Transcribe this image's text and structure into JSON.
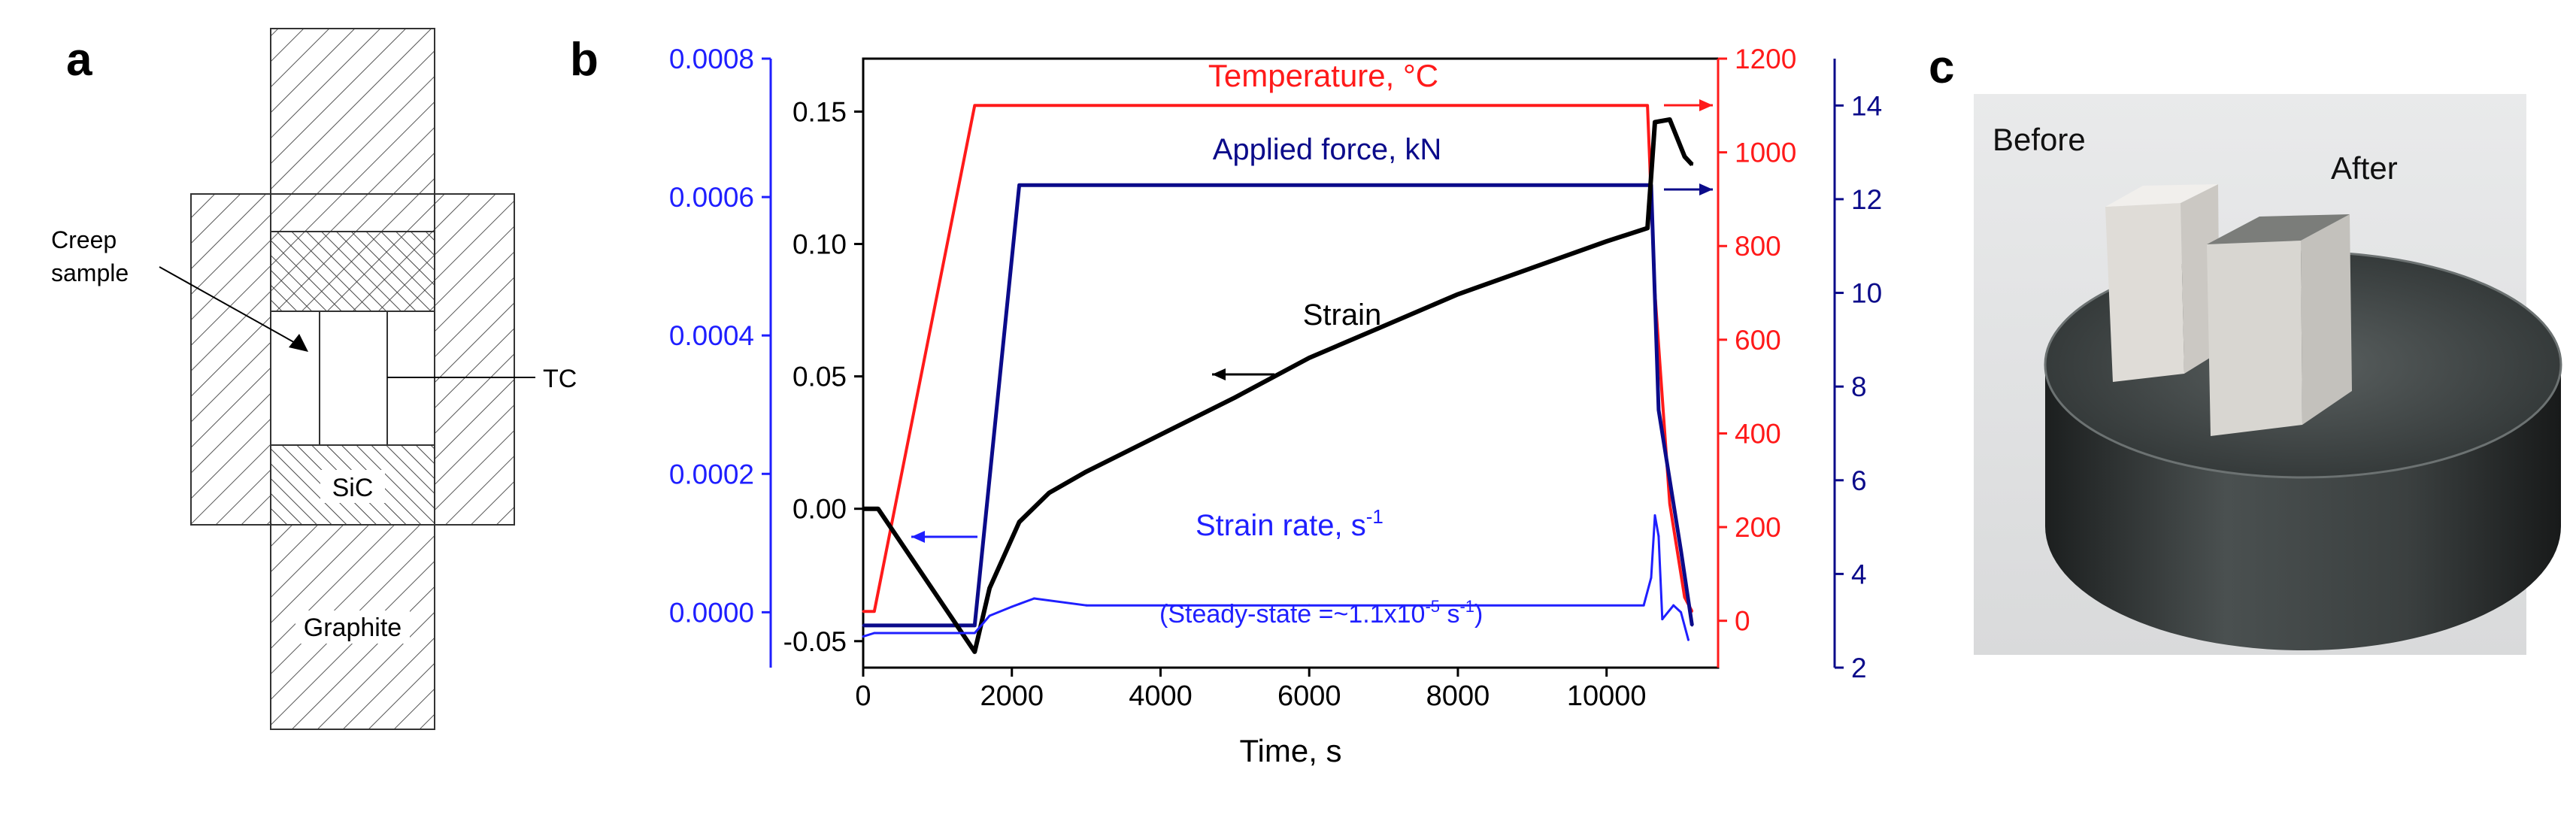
{
  "panel_labels": {
    "a": "a",
    "b": "b",
    "c": "c"
  },
  "schematic": {
    "creep_sample_label_1": "Creep",
    "creep_sample_label_2": "sample",
    "tc_label": "TC",
    "sic_label": "SiC",
    "graphite_label": "Graphite"
  },
  "photo": {
    "before_label": "Before",
    "after_label": "After"
  },
  "colors": {
    "strain": "#000000",
    "strain_rate": "#1f1fff",
    "temperature": "#ff1a1a",
    "force": "#0b0b8a"
  },
  "chart_data": {
    "type": "line",
    "xlabel": "Time, s",
    "xlim": [
      0,
      11500
    ],
    "xticks": [
      0,
      2000,
      4000,
      6000,
      8000,
      10000
    ],
    "xtick_labels": [
      "0",
      "2000",
      "4000",
      "6000",
      "8000",
      "10000"
    ],
    "axes": {
      "strain_rate": {
        "ylim": [
          -8e-05,
          0.0008
        ],
        "ticks": [
          0.0,
          0.0002,
          0.0004,
          0.0006,
          0.0008
        ],
        "tick_labels": [
          "0.0000",
          "0.0002",
          "0.0004",
          "0.0006",
          "0.0008"
        ],
        "side": "far-left"
      },
      "strain": {
        "ylim": [
          -0.06,
          0.17
        ],
        "ticks": [
          -0.05,
          0.0,
          0.05,
          0.1,
          0.15
        ],
        "tick_labels": [
          "-0.05",
          "0.00",
          "0.05",
          "0.10",
          "0.15"
        ],
        "side": "left"
      },
      "temperature": {
        "ylim": [
          -100,
          1200
        ],
        "ticks": [
          0,
          200,
          400,
          600,
          800,
          1000,
          1200
        ],
        "tick_labels": [
          "0",
          "200",
          "400",
          "600",
          "800",
          "1000",
          "1200"
        ],
        "side": "right"
      },
      "force": {
        "ylim": [
          2,
          15
        ],
        "ticks": [
          2,
          4,
          6,
          8,
          10,
          12,
          14
        ],
        "tick_labels": [
          "2",
          "4",
          "6",
          "8",
          "10",
          "12",
          "14"
        ],
        "side": "far-right"
      }
    },
    "series": [
      {
        "name": "Temperature, °C",
        "axis": "temperature",
        "x": [
          0,
          150,
          1500,
          10550,
          10650,
          10850,
          11050,
          11150
        ],
        "y": [
          20,
          20,
          1100,
          1100,
          700,
          250,
          50,
          20
        ]
      },
      {
        "name": "Applied force, kN",
        "axis": "force",
        "x": [
          0,
          1500,
          2100,
          10600,
          10700,
          11000,
          11150
        ],
        "y": [
          2.9,
          2.9,
          12.3,
          12.3,
          7.5,
          4.5,
          2.9
        ]
      },
      {
        "name": "Strain",
        "axis": "strain",
        "x": [
          0,
          200,
          1500,
          1700,
          2100,
          2500,
          3000,
          4000,
          5000,
          6000,
          7000,
          8000,
          9000,
          10000,
          10550,
          10650,
          10850,
          11050,
          11150
        ],
        "y": [
          0.0,
          0.0,
          -0.054,
          -0.03,
          -0.005,
          0.006,
          0.014,
          0.028,
          0.042,
          0.057,
          0.069,
          0.081,
          0.091,
          0.101,
          0.106,
          0.146,
          0.147,
          0.133,
          0.13
        ]
      },
      {
        "name": "Strain rate, s-1",
        "axis": "strain_rate",
        "x": [
          0,
          150,
          1500,
          1700,
          2000,
          2100,
          2300,
          3000,
          6000,
          10500,
          10600,
          10650,
          10700,
          10750,
          10900,
          11000,
          11100
        ],
        "y": [
          -3.5e-05,
          -3e-05,
          -3e-05,
          -5e-06,
          8e-06,
          1.2e-05,
          2e-05,
          1e-05,
          1e-05,
          1e-05,
          5e-05,
          0.00014,
          0.00011,
          -1e-05,
          1e-05,
          0.0,
          -4e-05
        ]
      }
    ],
    "annotations": {
      "temperature_label": "Temperature, °C",
      "force_label": "Applied force, kN",
      "strain_label": "Strain",
      "strain_rate_label": "Strain rate, s",
      "strain_rate_sup": "-1",
      "steady_state_prefix": "(Steady-state =~1.1x10",
      "steady_state_sup": "-5",
      "steady_state_suffix": " s",
      "steady_state_suffix_sup": "-1",
      "steady_state_close": ")"
    }
  }
}
